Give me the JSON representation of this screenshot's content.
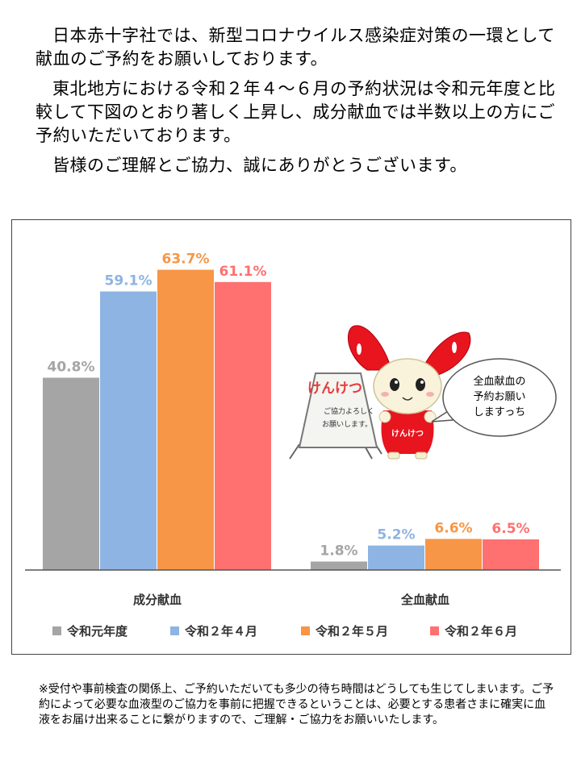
{
  "intro": {
    "paragraphs": [
      "日本赤十字社では、新型コロナウイルス感染症対策の一環として献血のご予約をお願いしております。",
      "東北地方における令和２年４〜６月の予約状況は令和元年度と比較して下図のとおり著しく上昇し、成分献血では半数以上の方にご予約いただいております。",
      "皆様のご理解とご協力、誠にありがとうございます。"
    ]
  },
  "chart_data": {
    "type": "bar",
    "categories": [
      "成分献血",
      "全血献血"
    ],
    "series": [
      {
        "name": "令和元年度",
        "values": [
          40.8,
          1.8
        ],
        "labels": [
          "40.8%",
          "1.8%"
        ],
        "color": "#a5a5a5"
      },
      {
        "name": "令和２年４月",
        "values": [
          59.1,
          5.2
        ],
        "labels": [
          "59.1%",
          "5.2%"
        ],
        "color": "#8eb4e3"
      },
      {
        "name": "令和２年５月",
        "values": [
          63.7,
          6.6
        ],
        "labels": [
          "63.7%",
          "6.6%"
        ],
        "color": "#f79646"
      },
      {
        "name": "令和２年６月",
        "values": [
          61.1,
          6.5
        ],
        "labels": [
          "61.1%",
          "6.5%"
        ],
        "color": "#ff7070"
      }
    ],
    "ylim": [
      0,
      65
    ],
    "grid": false,
    "legend": "bottom"
  },
  "mascot": {
    "board_title": "けんけつ",
    "board_text_line1": "ご協力よろしく",
    "board_text_line2": "お願いします。",
    "shirt_text": "けんけつ",
    "speech_lines": [
      "全血献血の",
      "予約お願い",
      "しますっち"
    ]
  },
  "footnote": "※受付や事前検査の関係上、ご予約いただいても多少の待ち時間はどうしても生じてしまいます。ご予約によって必要な血液型のご協力を事前に把握できるということは、必要とする患者さまに確実に血液をお届け出来ることに繋がりますので、ご理解・ご協力をお願いいたします。"
}
